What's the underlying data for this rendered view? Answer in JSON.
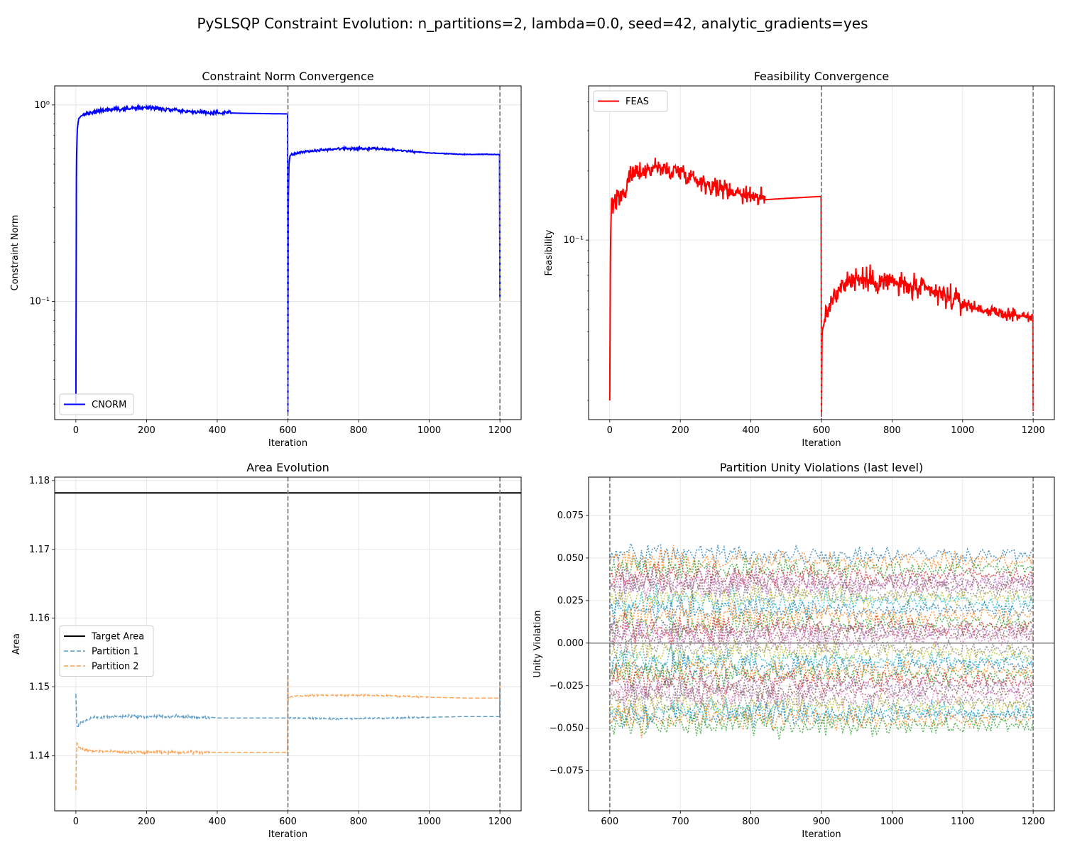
{
  "figure": {
    "title": "PySLSQP Constraint Evolution: n_partitions=2, lambda=0.0, seed=42, analytic_gradients=yes"
  },
  "chart_data": [
    {
      "id": "cnorm",
      "type": "line",
      "title": "Constraint Norm Convergence",
      "xlabel": "Iteration",
      "ylabel": "Constraint Norm",
      "yscale": "log",
      "xlim": [
        -60,
        1260
      ],
      "ylim": [
        0.025,
        1.25
      ],
      "xticks": [
        0,
        200,
        400,
        600,
        800,
        1000,
        1200
      ],
      "xtick_labels": [
        "0",
        "200",
        "400",
        "600",
        "800",
        "1000",
        "1200"
      ],
      "yticks": [
        0.1,
        1.0
      ],
      "ytick_labels": [
        "10⁻¹",
        "10⁰"
      ],
      "vlines": [
        600,
        1200
      ],
      "grid": true,
      "legend": "lower-left",
      "series": [
        {
          "name": "CNORM",
          "color": "#0000ff",
          "style": "solid",
          "x": [
            0,
            2,
            4,
            8,
            15,
            30,
            60,
            100,
            150,
            200,
            250,
            300,
            350,
            400,
            430,
            500,
            599,
            600,
            601,
            603,
            606,
            610,
            620,
            650,
            700,
            750,
            800,
            850,
            900,
            950,
            1000,
            1050,
            1100,
            1150,
            1199,
            1200
          ],
          "y": [
            0.03,
            0.55,
            0.75,
            0.85,
            0.88,
            0.9,
            0.93,
            0.95,
            0.96,
            0.97,
            0.95,
            0.93,
            0.92,
            0.91,
            0.91,
            0.905,
            0.9,
            0.027,
            0.3,
            0.5,
            0.55,
            0.56,
            0.57,
            0.58,
            0.59,
            0.6,
            0.6,
            0.6,
            0.59,
            0.58,
            0.57,
            0.565,
            0.56,
            0.56,
            0.56,
            0.105
          ]
        }
      ]
    },
    {
      "id": "feas",
      "type": "line",
      "title": "Feasibility Convergence",
      "xlabel": "Iteration",
      "ylabel": "Feasibility",
      "yscale": "log",
      "xlim": [
        -60,
        1260
      ],
      "ylim": [
        0.0165,
        0.47
      ],
      "xticks": [
        0,
        200,
        400,
        600,
        800,
        1000,
        1200
      ],
      "xtick_labels": [
        "0",
        "200",
        "400",
        "600",
        "800",
        "1000",
        "1200"
      ],
      "yticks": [
        0.1
      ],
      "ytick_labels": [
        "10⁻¹"
      ],
      "vlines": [
        600,
        1200
      ],
      "grid": true,
      "legend": "top-left",
      "series": [
        {
          "name": "FEAS",
          "color": "#ff0000",
          "style": "solid",
          "x": [
            0,
            2,
            5,
            10,
            20,
            40,
            60,
            80,
            100,
            130,
            160,
            200,
            230,
            260,
            300,
            340,
            380,
            420,
            440,
            500,
            599,
            600,
            602,
            610,
            630,
            660,
            700,
            750,
            800,
            850,
            900,
            950,
            1000,
            1050,
            1100,
            1150,
            1199,
            1200
          ],
          "y": [
            0.02,
            0.09,
            0.15,
            0.14,
            0.15,
            0.16,
            0.19,
            0.2,
            0.2,
            0.21,
            0.2,
            0.2,
            0.19,
            0.18,
            0.17,
            0.165,
            0.16,
            0.155,
            0.15,
            0.152,
            0.155,
            0.017,
            0.04,
            0.045,
            0.055,
            0.065,
            0.068,
            0.066,
            0.066,
            0.062,
            0.06,
            0.057,
            0.053,
            0.05,
            0.048,
            0.047,
            0.046,
            0.018
          ]
        }
      ]
    },
    {
      "id": "area",
      "type": "line",
      "title": "Area Evolution",
      "xlabel": "Iteration",
      "ylabel": "Area",
      "yscale": "linear",
      "xlim": [
        -60,
        1260
      ],
      "ylim": [
        1.132,
        1.1805
      ],
      "xticks": [
        0,
        200,
        400,
        600,
        800,
        1000,
        1200
      ],
      "xtick_labels": [
        "0",
        "200",
        "400",
        "600",
        "800",
        "1000",
        "1200"
      ],
      "yticks": [
        1.14,
        1.15,
        1.16,
        1.17,
        1.18
      ],
      "ytick_labels": [
        "1.14",
        "1.15",
        "1.16",
        "1.17",
        "1.18"
      ],
      "vlines": [
        600,
        1200
      ],
      "grid": true,
      "legend": "center-left",
      "series": [
        {
          "name": "Target Area",
          "color": "#000000",
          "style": "solid",
          "x": [
            -60,
            1260
          ],
          "y": [
            1.1782,
            1.1782
          ]
        },
        {
          "name": "Partition 1",
          "color": "#1f77b4",
          "style": "dashed",
          "x": [
            0,
            1,
            3,
            8,
            20,
            50,
            100,
            150,
            200,
            250,
            300,
            350,
            380,
            400,
            500,
            599,
            600,
            601,
            605,
            620,
            700,
            800,
            900,
            1000,
            1100,
            1199,
            1200
          ],
          "y": [
            1.149,
            1.147,
            1.144,
            1.1445,
            1.145,
            1.1455,
            1.1457,
            1.1458,
            1.1457,
            1.1457,
            1.1457,
            1.1456,
            1.1456,
            1.1455,
            1.1455,
            1.1455,
            1.1455,
            1.1455,
            1.1455,
            1.1455,
            1.1454,
            1.1454,
            1.1455,
            1.1456,
            1.1457,
            1.1457,
            1.1495
          ]
        },
        {
          "name": "Partition 2",
          "color": "#ff7f0e",
          "style": "dashed",
          "x": [
            0,
            1,
            3,
            8,
            20,
            50,
            100,
            150,
            200,
            250,
            300,
            350,
            400,
            500,
            599,
            600,
            601,
            605,
            620,
            700,
            800,
            900,
            1000,
            1100,
            1199,
            1200
          ],
          "y": [
            1.135,
            1.139,
            1.142,
            1.1412,
            1.1409,
            1.1407,
            1.1406,
            1.1405,
            1.1405,
            1.1405,
            1.1405,
            1.1405,
            1.1405,
            1.1405,
            1.1405,
            1.1515,
            1.148,
            1.1485,
            1.1487,
            1.1488,
            1.1488,
            1.1487,
            1.1485,
            1.1484,
            1.1484,
            1.1505
          ]
        }
      ]
    },
    {
      "id": "unity",
      "type": "line",
      "title": "Partition Unity Violations (last level)",
      "xlabel": "Iteration",
      "ylabel": "Unity Violation",
      "yscale": "linear",
      "xlim": [
        570,
        1230
      ],
      "ylim": [
        -0.0985,
        0.0975
      ],
      "xticks": [
        600,
        700,
        800,
        900,
        1000,
        1100,
        1200
      ],
      "xtick_labels": [
        "600",
        "700",
        "800",
        "900",
        "1000",
        "1100",
        "1200"
      ],
      "yticks": [
        -0.075,
        -0.05,
        -0.025,
        0.0,
        0.025,
        0.05,
        0.075
      ],
      "ytick_labels": [
        "−0.075",
        "−0.050",
        "−0.025",
        "0.000",
        "0.025",
        "0.050",
        "0.075"
      ],
      "vlines": [
        600,
        1200
      ],
      "hline": 0.0,
      "grid": true,
      "style": "dotted",
      "x_range": [
        600,
        1200
      ],
      "series_colors": [
        "#1f77b4",
        "#ff7f0e",
        "#2ca02c",
        "#d62728",
        "#9467bd",
        "#8c564b",
        "#e377c2",
        "#7f7f7f",
        "#bcbd22",
        "#17becf"
      ],
      "series_centers": [
        0.052,
        0.048,
        0.044,
        0.04,
        0.036,
        0.035,
        0.034,
        0.03,
        0.027,
        0.024,
        0.02,
        0.016,
        0.012,
        0.009,
        0.007,
        0.005,
        0.003,
        -0.003,
        -0.006,
        -0.01,
        -0.013,
        -0.016,
        -0.019,
        -0.022,
        -0.025,
        -0.028,
        -0.031,
        -0.034,
        -0.037,
        -0.04,
        -0.042,
        -0.045,
        -0.048
      ]
    }
  ]
}
